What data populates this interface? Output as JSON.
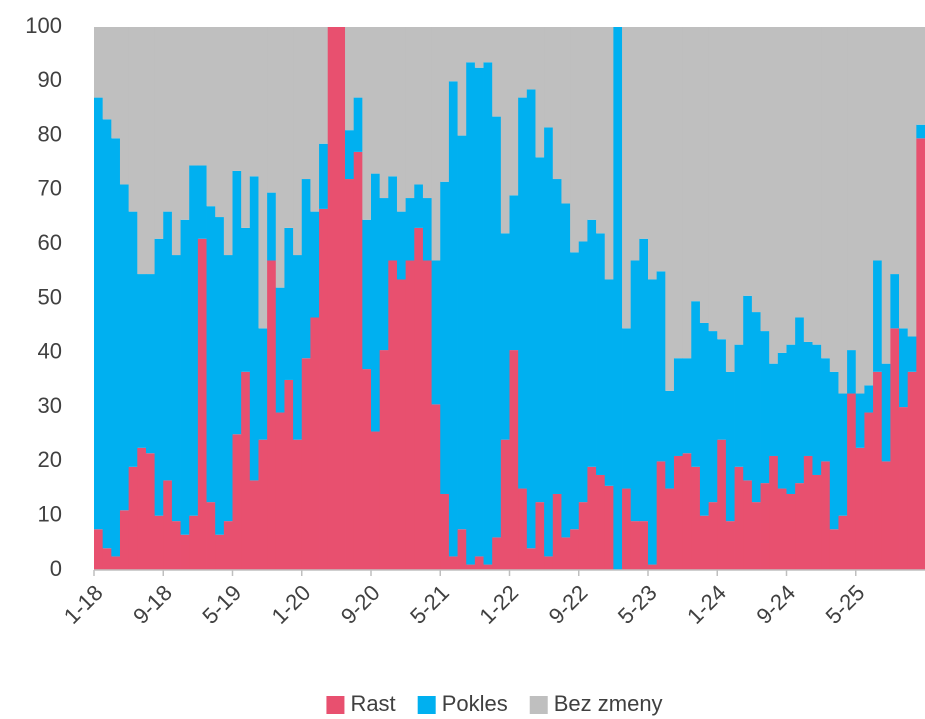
{
  "chart_data": {
    "type": "stacked_bar",
    "categories": [
      "1-18",
      null,
      null,
      null,
      null,
      null,
      null,
      null,
      "9-18",
      null,
      null,
      null,
      null,
      null,
      null,
      null,
      "5-19",
      null,
      null,
      null,
      null,
      null,
      null,
      null,
      "1-20",
      null,
      null,
      null,
      null,
      null,
      null,
      null,
      "9-20",
      null,
      null,
      null,
      null,
      null,
      null,
      null,
      "5-21",
      null,
      null,
      null,
      null,
      null,
      null,
      null,
      "1-22",
      null,
      null,
      null,
      null,
      null,
      null,
      null,
      "9-22",
      null,
      null,
      null,
      null,
      null,
      null,
      null,
      "5-23",
      null,
      null,
      null,
      null,
      null,
      null,
      null,
      "1-24",
      null,
      null,
      null,
      null,
      null,
      null,
      null,
      "9-24",
      null,
      null,
      null,
      null,
      null,
      null,
      null,
      "5-25",
      null,
      null,
      null,
      null,
      null,
      null,
      null
    ],
    "series": [
      {
        "name": "Rast",
        "color": "#e8506f",
        "values": [
          7.5,
          4,
          2.5,
          11,
          19,
          22.5,
          21.5,
          10,
          16.5,
          9,
          6.5,
          10,
          61,
          12.5,
          6.5,
          9,
          25,
          36.5,
          16.5,
          24,
          57,
          29,
          35,
          24,
          39,
          46.5,
          66.5,
          100,
          100,
          72,
          77,
          37,
          25.5,
          40.5,
          57,
          53.5,
          57,
          63,
          57,
          30.5,
          14,
          2.5,
          7.5,
          1,
          2.5,
          1,
          6,
          24,
          40.5,
          15,
          4,
          12.5,
          2.5,
          14,
          6,
          7.5,
          12.5,
          19,
          17.5,
          15.5,
          0,
          15,
          9,
          9,
          1,
          20,
          15,
          21,
          21.5,
          19,
          10,
          12.5,
          24,
          9,
          19,
          16.5,
          12.5,
          16,
          21,
          15,
          14,
          16,
          21,
          17.5,
          20,
          7.5,
          10,
          32.5,
          22.5,
          29,
          36.5,
          20,
          44.5,
          30,
          36.5,
          79.5
        ]
      },
      {
        "name": "Pokles",
        "color": "#00b0f0",
        "values": [
          79.5,
          79,
          77,
          60,
          47,
          32,
          33,
          51,
          49.5,
          49,
          58,
          64.5,
          13.5,
          54.5,
          58.5,
          49,
          48.5,
          26.5,
          56,
          20.5,
          12.5,
          23,
          28,
          34,
          33,
          19.5,
          12,
          0,
          0,
          9,
          10,
          27.5,
          47.5,
          28,
          15.5,
          12.5,
          11.5,
          8,
          11.5,
          26.5,
          57.5,
          87.5,
          72.5,
          92.5,
          90,
          92.5,
          77.5,
          38,
          28.5,
          72,
          84.5,
          63.5,
          79,
          58,
          61.5,
          51,
          48,
          45.5,
          44.5,
          38,
          100,
          29.5,
          48,
          52,
          52.5,
          35,
          18,
          18,
          17.5,
          30.5,
          35.5,
          31.5,
          18.5,
          27.5,
          22.5,
          34,
          35,
          28,
          17,
          25,
          27.5,
          30.5,
          21,
          24,
          19,
          29,
          22.5,
          8,
          10,
          5,
          20.5,
          18,
          10,
          14.5,
          6.5,
          2.5
        ]
      },
      {
        "name": "Bez zmeny",
        "color": "#bfbfbf",
        "values": [
          13,
          17,
          20.5,
          29,
          34,
          45.5,
          45.5,
          39,
          34,
          42,
          35.5,
          25.5,
          25.5,
          33,
          35,
          42,
          26.5,
          37,
          27.5,
          55.5,
          30.5,
          48,
          37,
          42,
          28,
          34,
          21.5,
          0,
          0,
          19,
          13,
          35.5,
          27,
          31.5,
          27.5,
          34,
          31.5,
          29,
          31.5,
          43,
          28.5,
          10,
          20,
          6.5,
          7.5,
          6.5,
          16.5,
          38,
          31,
          13,
          11.5,
          24,
          18.5,
          28,
          32.5,
          41.5,
          39.5,
          35.5,
          38,
          46.5,
          0,
          55.5,
          43,
          39,
          46.5,
          45,
          67,
          61,
          61,
          50.5,
          54.5,
          56,
          57.5,
          63.5,
          58.5,
          49.5,
          52.5,
          56,
          62,
          60,
          58.5,
          53.5,
          58,
          58.5,
          61,
          63.5,
          67.5,
          59.5,
          67.5,
          66,
          43,
          62,
          45.5,
          55.5,
          57,
          18
        ]
      }
    ],
    "ylim": [
      0,
      100
    ],
    "yticks": [
      0,
      10,
      20,
      30,
      40,
      50,
      60,
      70,
      80,
      90,
      100
    ],
    "legend": "bottom"
  }
}
